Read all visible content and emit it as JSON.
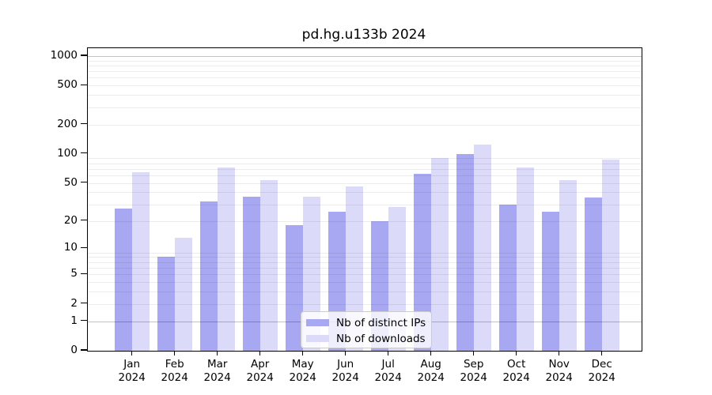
{
  "chart_data": {
    "type": "bar",
    "title": "pd.hg.u133b 2024",
    "categories": [
      "Jan",
      "Feb",
      "Mar",
      "Apr",
      "May",
      "Jun",
      "Jul",
      "Aug",
      "Sep",
      "Oct",
      "Nov",
      "Dec"
    ],
    "category_year": "2024",
    "series": [
      {
        "name": "Nb of distinct IPs",
        "color": "#a8a8f2",
        "values": [
          27,
          8,
          32,
          36,
          18,
          25,
          20,
          62,
          100,
          30,
          25,
          35
        ]
      },
      {
        "name": "Nb of downloads",
        "color": "#dbdbf9",
        "values": [
          65,
          13,
          72,
          54,
          36,
          46,
          28,
          90,
          125,
          72,
          54,
          88
        ]
      }
    ],
    "yscale": "log1p",
    "yticks": [
      0,
      1,
      2,
      5,
      10,
      20,
      50,
      100,
      200,
      500,
      1000
    ],
    "ylim": [
      0,
      1200
    ],
    "xlabel": "",
    "ylabel": "",
    "grid": "horizontal-major-and-minor",
    "legend_position": "bottom-center-inside"
  }
}
